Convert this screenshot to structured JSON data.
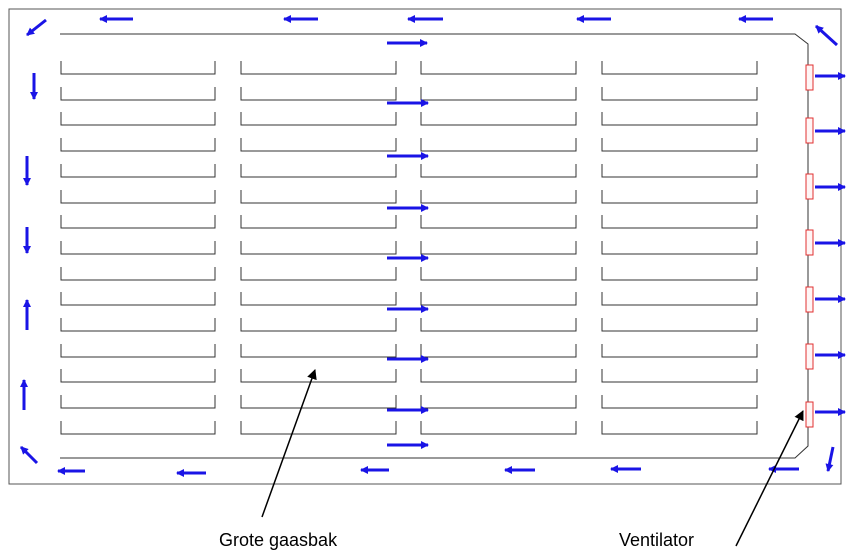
{
  "labels": {
    "bin": "Grote gaasbak",
    "fan": "Ventilator"
  },
  "colors": {
    "arrow": "#1a14e6",
    "line": "#000000",
    "fan": "#e03030",
    "outline": "#555555"
  },
  "layout_counts": {
    "columns": 4,
    "rows": 15,
    "fans": 7
  }
}
